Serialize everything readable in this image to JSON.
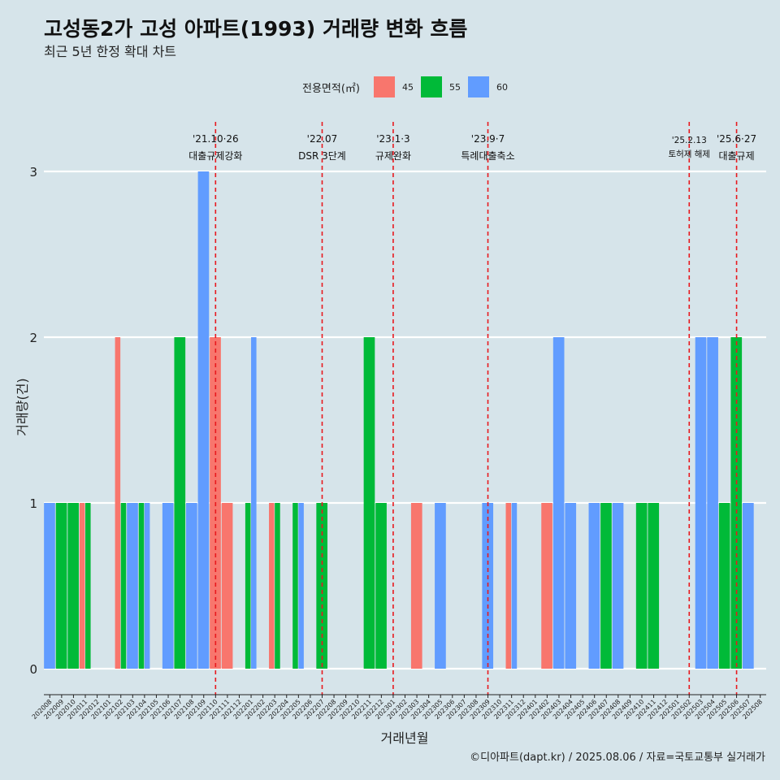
{
  "chart_data": {
    "type": "bar",
    "title": "고성동2가 고성 아파트(1993) 거래량 변화 흐름",
    "subtitle": "최근 5년 한정 확대 차트",
    "xlabel": "거래년월",
    "ylabel": "거래량(건)",
    "ylim": [
      0,
      3
    ],
    "yticks": [
      "0",
      "1",
      "2",
      "3"
    ],
    "grid": true,
    "legend": {
      "title": "전용면적(㎡)",
      "position": "top"
    },
    "categories": [
      "202008",
      "202009",
      "202010",
      "202011",
      "202012",
      "202101",
      "202102",
      "202103",
      "202104",
      "202105",
      "202106",
      "202107",
      "202108",
      "202109",
      "202110",
      "202111",
      "202112",
      "202201",
      "202202",
      "202203",
      "202204",
      "202205",
      "202206",
      "202207",
      "202208",
      "202209",
      "202210",
      "202211",
      "202212",
      "202301",
      "202302",
      "202303",
      "202304",
      "202305",
      "202306",
      "202307",
      "202308",
      "202309",
      "202310",
      "202311",
      "202312",
      "202401",
      "202402",
      "202403",
      "202404",
      "202405",
      "202406",
      "202407",
      "202408",
      "202409",
      "202410",
      "202411",
      "202412",
      "202501",
      "202502",
      "202503",
      "202504",
      "202505",
      "202506",
      "202507",
      "202508"
    ],
    "series": [
      {
        "name": "45",
        "color": "#f8766d",
        "points": [
          {
            "month": "202011",
            "value": 1
          },
          {
            "month": "202102",
            "value": 2
          },
          {
            "month": "202110",
            "value": 2
          },
          {
            "month": "202111",
            "value": 1
          },
          {
            "month": "202203",
            "value": 1
          },
          {
            "month": "202303",
            "value": 1
          },
          {
            "month": "202311",
            "value": 1
          },
          {
            "month": "202402",
            "value": 1
          }
        ]
      },
      {
        "name": "55",
        "color": "#00ba38",
        "points": [
          {
            "month": "202009",
            "value": 1
          },
          {
            "month": "202010",
            "value": 1
          },
          {
            "month": "202011",
            "value": 1
          },
          {
            "month": "202102",
            "value": 1
          },
          {
            "month": "202104",
            "value": 1
          },
          {
            "month": "202107",
            "value": 2
          },
          {
            "month": "202201",
            "value": 1
          },
          {
            "month": "202203",
            "value": 1
          },
          {
            "month": "202205",
            "value": 1
          },
          {
            "month": "202207",
            "value": 1
          },
          {
            "month": "202211",
            "value": 2
          },
          {
            "month": "202212",
            "value": 1
          },
          {
            "month": "202407",
            "value": 1
          },
          {
            "month": "202410",
            "value": 1
          },
          {
            "month": "202411",
            "value": 1
          },
          {
            "month": "202505",
            "value": 1
          },
          {
            "month": "202506",
            "value": 2
          }
        ]
      },
      {
        "name": "60",
        "color": "#619cff",
        "points": [
          {
            "month": "202008",
            "value": 1
          },
          {
            "month": "202103",
            "value": 1
          },
          {
            "month": "202104",
            "value": 1
          },
          {
            "month": "202106",
            "value": 1
          },
          {
            "month": "202108",
            "value": 1
          },
          {
            "month": "202109",
            "value": 3
          },
          {
            "month": "202201",
            "value": 2
          },
          {
            "month": "202205",
            "value": 1
          },
          {
            "month": "202305",
            "value": 1
          },
          {
            "month": "202309",
            "value": 1
          },
          {
            "month": "202311",
            "value": 1
          },
          {
            "month": "202403",
            "value": 2
          },
          {
            "month": "202404",
            "value": 1
          },
          {
            "month": "202406",
            "value": 1
          },
          {
            "month": "202408",
            "value": 1
          },
          {
            "month": "202503",
            "value": 2
          },
          {
            "month": "202504",
            "value": 2
          },
          {
            "month": "202507",
            "value": 1
          }
        ]
      }
    ],
    "events": [
      {
        "month": "202110",
        "date": "'21.10·26",
        "label": "대출규제강화",
        "small": false
      },
      {
        "month": "202207",
        "date": "'22.07",
        "label": "DSR 3단계",
        "small": false
      },
      {
        "month": "202301",
        "date": "'23.1·3",
        "label": "규제완화",
        "small": false
      },
      {
        "month": "202309",
        "date": "'23.9·7",
        "label": "특례대출축소",
        "small": false
      },
      {
        "month": "202502",
        "date": "'25.2.13",
        "label": "토허제 해제",
        "small": true
      },
      {
        "month": "202506",
        "date": "'25.6·27",
        "label": "대출규제",
        "small": false
      }
    ],
    "caption": "©디아파트(dapt.kr) / 2025.08.06 / 자료=국토교통부 실거래가"
  }
}
